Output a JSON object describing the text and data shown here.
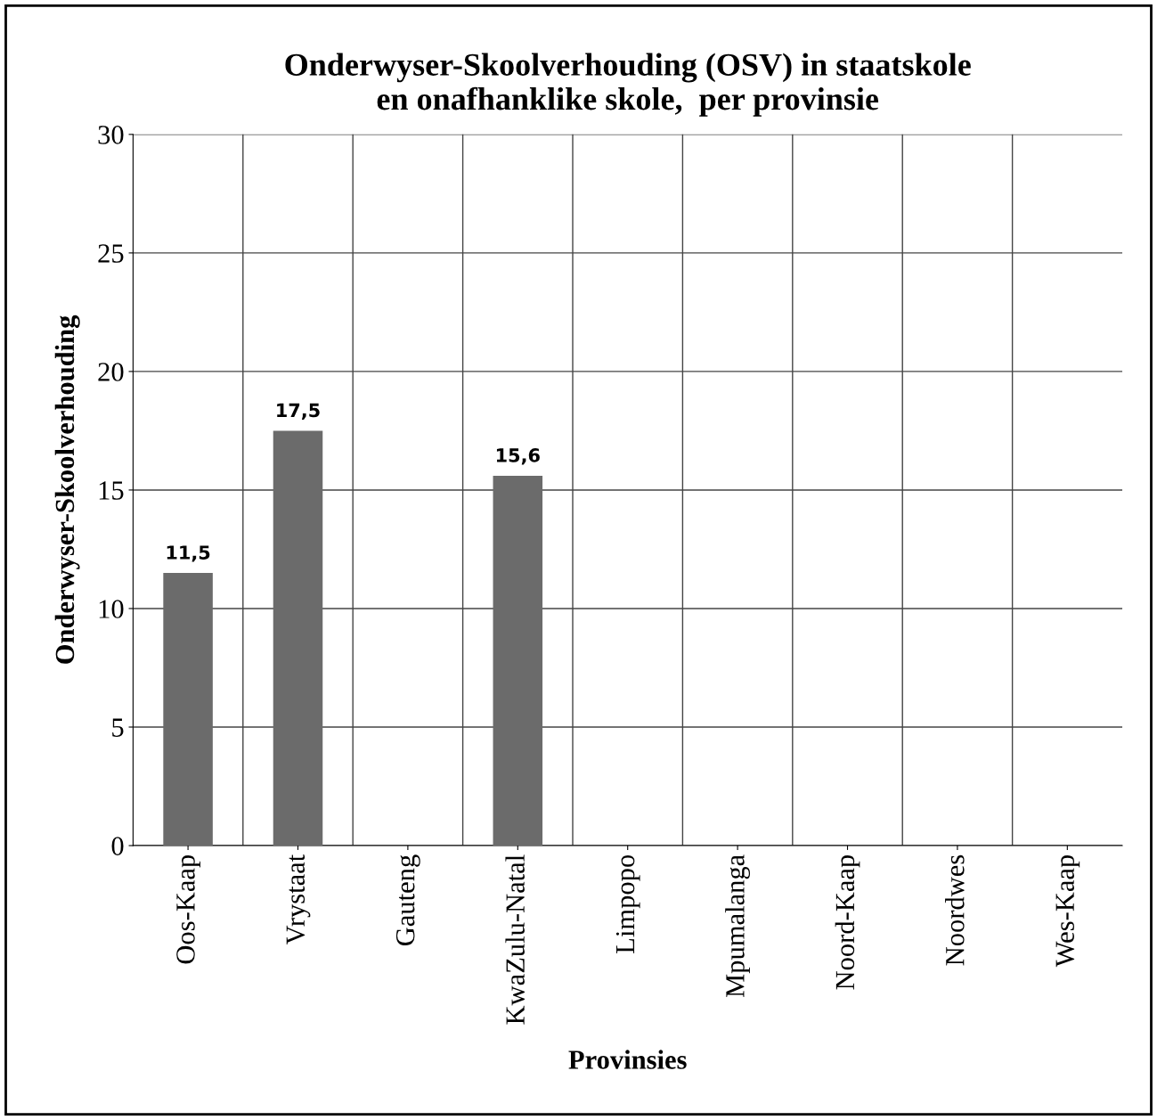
{
  "chart_data": {
    "type": "bar",
    "title": "Onderwyser-Skoolverhouding (OSV) in staatskole\nen onafhanklike skole,  per provinsie",
    "xlabel": "Provinsies",
    "ylabel": "Onderwyser-Skoolverhouding",
    "categories": [
      "Oos-Kaap",
      "Vrystaat",
      "Gauteng",
      "KwaZulu-Natal",
      "Limpopo",
      "Mpumalanga",
      "Noord-Kaap",
      "Noordwes",
      "Wes-Kaap"
    ],
    "values": [
      11.5,
      17.5,
      null,
      15.6,
      null,
      null,
      null,
      null,
      null
    ],
    "value_labels": [
      "11,5",
      "17,5",
      null,
      "15,6",
      null,
      null,
      null,
      null,
      null
    ],
    "color": "#6b6b6b",
    "ylim": [
      0,
      30
    ],
    "yticks": [
      0,
      5,
      10,
      15,
      20,
      25,
      30
    ],
    "grid": true
  }
}
